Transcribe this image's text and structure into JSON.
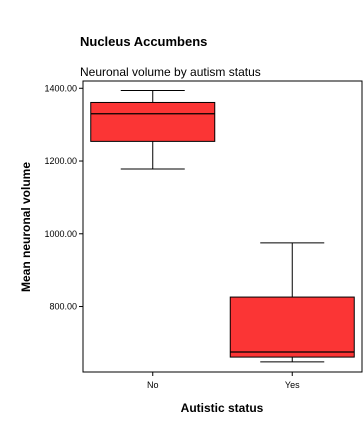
{
  "chart_data": {
    "type": "box",
    "title": "Nucleus Accumbens",
    "subtitle": "Neuronal volume by autism status",
    "xlabel": "Autistic status",
    "ylabel": "Mean neuronal volume",
    "categories": [
      "No",
      "Yes"
    ],
    "ylim": [
      620,
      1420
    ],
    "yticks": [
      800,
      1000,
      1200,
      1400
    ],
    "ytick_labels": [
      "800.00",
      "1000.00",
      "1200.00",
      "1400.00"
    ],
    "boxes": [
      {
        "category": "No",
        "whisker_low": 1178,
        "q1": 1254,
        "median": 1330,
        "q3": 1361,
        "whisker_high": 1394
      },
      {
        "category": "Yes",
        "whisker_low": 648,
        "q1": 661,
        "median": 675,
        "q3": 826,
        "whisker_high": 975
      }
    ],
    "box_color": "#fb3535",
    "grid": false,
    "legend": "none"
  }
}
